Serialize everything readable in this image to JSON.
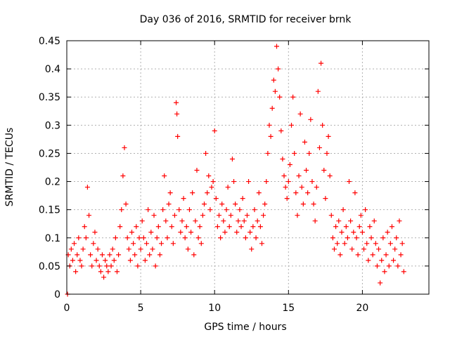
{
  "chart_data": {
    "type": "scatter",
    "title": "Day 036 of 2016, SRMTID for receiver brnk",
    "xlabel": "GPS time / hours",
    "ylabel": "SRMTID / TECUs",
    "xlim": [
      0,
      24.5
    ],
    "ylim": [
      0,
      0.45
    ],
    "x_ticks": [
      0,
      5,
      10,
      15,
      20
    ],
    "x_tick_labels": [
      "0",
      "5",
      "10",
      "15",
      "20"
    ],
    "y_ticks": [
      0,
      0.05,
      0.1,
      0.15,
      0.2,
      0.25,
      0.3,
      0.35,
      0.4,
      0.45
    ],
    "y_tick_labels": [
      "0",
      "0.05",
      "0.1",
      "0.15",
      "0.2",
      "0.25",
      "0.3",
      "0.35",
      "0.4",
      "0.45"
    ],
    "grid": true,
    "marker": "+",
    "marker_color": "#ff0000",
    "series": [
      {
        "name": "SRMTID",
        "points": [
          [
            0.05,
            0.0
          ],
          [
            0.1,
            0.07
          ],
          [
            0.2,
            0.05
          ],
          [
            0.3,
            0.08
          ],
          [
            0.4,
            0.06
          ],
          [
            0.5,
            0.09
          ],
          [
            0.6,
            0.04
          ],
          [
            0.7,
            0.07
          ],
          [
            0.8,
            0.1
          ],
          [
            0.9,
            0.06
          ],
          [
            1.0,
            0.05
          ],
          [
            1.1,
            0.08
          ],
          [
            1.2,
            0.12
          ],
          [
            1.3,
            0.1
          ],
          [
            1.4,
            0.19
          ],
          [
            1.5,
            0.14
          ],
          [
            1.6,
            0.07
          ],
          [
            1.7,
            0.05
          ],
          [
            1.8,
            0.09
          ],
          [
            1.9,
            0.11
          ],
          [
            2.0,
            0.06
          ],
          [
            2.1,
            0.08
          ],
          [
            2.2,
            0.05
          ],
          [
            2.3,
            0.04
          ],
          [
            2.4,
            0.07
          ],
          [
            2.5,
            0.03
          ],
          [
            2.6,
            0.06
          ],
          [
            2.7,
            0.05
          ],
          [
            2.8,
            0.04
          ],
          [
            2.9,
            0.07
          ],
          [
            3.0,
            0.05
          ],
          [
            3.1,
            0.08
          ],
          [
            3.2,
            0.06
          ],
          [
            3.3,
            0.1
          ],
          [
            3.4,
            0.04
          ],
          [
            3.5,
            0.07
          ],
          [
            3.6,
            0.12
          ],
          [
            3.7,
            0.15
          ],
          [
            3.8,
            0.21
          ],
          [
            3.9,
            0.26
          ],
          [
            4.0,
            0.16
          ],
          [
            4.1,
            0.1
          ],
          [
            4.2,
            0.08
          ],
          [
            4.3,
            0.06
          ],
          [
            4.4,
            0.11
          ],
          [
            4.5,
            0.09
          ],
          [
            4.6,
            0.07
          ],
          [
            4.7,
            0.12
          ],
          [
            4.8,
            0.05
          ],
          [
            4.9,
            0.1
          ],
          [
            5.0,
            0.08
          ],
          [
            5.1,
            0.13
          ],
          [
            5.2,
            0.1
          ],
          [
            5.3,
            0.06
          ],
          [
            5.4,
            0.09
          ],
          [
            5.5,
            0.15
          ],
          [
            5.6,
            0.07
          ],
          [
            5.7,
            0.11
          ],
          [
            5.8,
            0.08
          ],
          [
            5.9,
            0.14
          ],
          [
            6.0,
            0.05
          ],
          [
            6.1,
            0.1
          ],
          [
            6.2,
            0.12
          ],
          [
            6.3,
            0.07
          ],
          [
            6.4,
            0.09
          ],
          [
            6.5,
            0.15
          ],
          [
            6.6,
            0.21
          ],
          [
            6.7,
            0.13
          ],
          [
            6.8,
            0.1
          ],
          [
            6.9,
            0.16
          ],
          [
            7.0,
            0.18
          ],
          [
            7.1,
            0.12
          ],
          [
            7.2,
            0.09
          ],
          [
            7.3,
            0.14
          ],
          [
            7.4,
            0.34
          ],
          [
            7.45,
            0.32
          ],
          [
            7.5,
            0.28
          ],
          [
            7.6,
            0.15
          ],
          [
            7.7,
            0.11
          ],
          [
            7.8,
            0.13
          ],
          [
            7.9,
            0.17
          ],
          [
            8.0,
            0.1
          ],
          [
            8.1,
            0.12
          ],
          [
            8.2,
            0.08
          ],
          [
            8.3,
            0.15
          ],
          [
            8.4,
            0.11
          ],
          [
            8.5,
            0.18
          ],
          [
            8.6,
            0.07
          ],
          [
            8.7,
            0.13
          ],
          [
            8.8,
            0.22
          ],
          [
            8.9,
            0.1
          ],
          [
            9.0,
            0.12
          ],
          [
            9.1,
            0.09
          ],
          [
            9.2,
            0.14
          ],
          [
            9.3,
            0.16
          ],
          [
            9.4,
            0.25
          ],
          [
            9.5,
            0.18
          ],
          [
            9.6,
            0.21
          ],
          [
            9.7,
            0.15
          ],
          [
            9.8,
            0.19
          ],
          [
            9.9,
            0.2
          ],
          [
            10.0,
            0.29
          ],
          [
            10.1,
            0.17
          ],
          [
            10.2,
            0.12
          ],
          [
            10.3,
            0.14
          ],
          [
            10.4,
            0.1
          ],
          [
            10.5,
            0.16
          ],
          [
            10.6,
            0.13
          ],
          [
            10.7,
            0.11
          ],
          [
            10.8,
            0.15
          ],
          [
            10.9,
            0.19
          ],
          [
            11.0,
            0.12
          ],
          [
            11.1,
            0.14
          ],
          [
            11.2,
            0.24
          ],
          [
            11.3,
            0.2
          ],
          [
            11.4,
            0.16
          ],
          [
            11.5,
            0.11
          ],
          [
            11.6,
            0.13
          ],
          [
            11.7,
            0.15
          ],
          [
            11.8,
            0.12
          ],
          [
            11.9,
            0.17
          ],
          [
            12.0,
            0.13
          ],
          [
            12.1,
            0.1
          ],
          [
            12.2,
            0.14
          ],
          [
            12.3,
            0.2
          ],
          [
            12.4,
            0.11
          ],
          [
            12.5,
            0.08
          ],
          [
            12.6,
            0.12
          ],
          [
            12.7,
            0.15
          ],
          [
            12.8,
            0.1
          ],
          [
            12.9,
            0.13
          ],
          [
            13.0,
            0.18
          ],
          [
            13.1,
            0.12
          ],
          [
            13.2,
            0.09
          ],
          [
            13.3,
            0.14
          ],
          [
            13.4,
            0.16
          ],
          [
            13.5,
            0.2
          ],
          [
            13.6,
            0.25
          ],
          [
            13.7,
            0.3
          ],
          [
            13.8,
            0.28
          ],
          [
            13.9,
            0.33
          ],
          [
            14.0,
            0.38
          ],
          [
            14.1,
            0.36
          ],
          [
            14.2,
            0.44
          ],
          [
            14.3,
            0.4
          ],
          [
            14.4,
            0.35
          ],
          [
            14.5,
            0.29
          ],
          [
            14.6,
            0.24
          ],
          [
            14.7,
            0.21
          ],
          [
            14.8,
            0.19
          ],
          [
            14.9,
            0.17
          ],
          [
            15.0,
            0.2
          ],
          [
            15.1,
            0.23
          ],
          [
            15.2,
            0.3
          ],
          [
            15.3,
            0.35
          ],
          [
            15.4,
            0.25
          ],
          [
            15.5,
            0.18
          ],
          [
            15.6,
            0.14
          ],
          [
            15.7,
            0.21
          ],
          [
            15.8,
            0.32
          ],
          [
            15.9,
            0.19
          ],
          [
            16.0,
            0.16
          ],
          [
            16.1,
            0.27
          ],
          [
            16.2,
            0.22
          ],
          [
            16.3,
            0.18
          ],
          [
            16.4,
            0.25
          ],
          [
            16.5,
            0.31
          ],
          [
            16.6,
            0.2
          ],
          [
            16.7,
            0.16
          ],
          [
            16.8,
            0.13
          ],
          [
            16.9,
            0.19
          ],
          [
            17.0,
            0.36
          ],
          [
            17.1,
            0.26
          ],
          [
            17.2,
            0.41
          ],
          [
            17.3,
            0.3
          ],
          [
            17.4,
            0.22
          ],
          [
            17.5,
            0.17
          ],
          [
            17.6,
            0.25
          ],
          [
            17.7,
            0.28
          ],
          [
            17.8,
            0.21
          ],
          [
            17.9,
            0.14
          ],
          [
            18.0,
            0.1
          ],
          [
            18.1,
            0.08
          ],
          [
            18.2,
            0.12
          ],
          [
            18.3,
            0.09
          ],
          [
            18.4,
            0.13
          ],
          [
            18.5,
            0.07
          ],
          [
            18.6,
            0.11
          ],
          [
            18.7,
            0.15
          ],
          [
            18.8,
            0.09
          ],
          [
            18.9,
            0.12
          ],
          [
            19.0,
            0.1
          ],
          [
            19.1,
            0.2
          ],
          [
            19.2,
            0.13
          ],
          [
            19.3,
            0.08
          ],
          [
            19.4,
            0.11
          ],
          [
            19.5,
            0.18
          ],
          [
            19.6,
            0.1
          ],
          [
            19.7,
            0.07
          ],
          [
            19.8,
            0.12
          ],
          [
            19.9,
            0.14
          ],
          [
            20.0,
            0.11
          ],
          [
            20.1,
            0.08
          ],
          [
            20.2,
            0.15
          ],
          [
            20.3,
            0.09
          ],
          [
            20.4,
            0.06
          ],
          [
            20.5,
            0.12
          ],
          [
            20.6,
            0.1
          ],
          [
            20.7,
            0.07
          ],
          [
            20.8,
            0.13
          ],
          [
            20.9,
            0.09
          ],
          [
            21.0,
            0.05
          ],
          [
            21.1,
            0.08
          ],
          [
            21.2,
            0.02
          ],
          [
            21.3,
            0.06
          ],
          [
            21.4,
            0.1
          ],
          [
            21.5,
            0.04
          ],
          [
            21.6,
            0.07
          ],
          [
            21.7,
            0.11
          ],
          [
            21.8,
            0.05
          ],
          [
            21.9,
            0.09
          ],
          [
            22.0,
            0.12
          ],
          [
            22.1,
            0.06
          ],
          [
            22.2,
            0.08
          ],
          [
            22.3,
            0.1
          ],
          [
            22.4,
            0.05
          ],
          [
            22.5,
            0.13
          ],
          [
            22.6,
            0.07
          ],
          [
            22.7,
            0.09
          ],
          [
            22.8,
            0.04
          ]
        ]
      }
    ]
  }
}
